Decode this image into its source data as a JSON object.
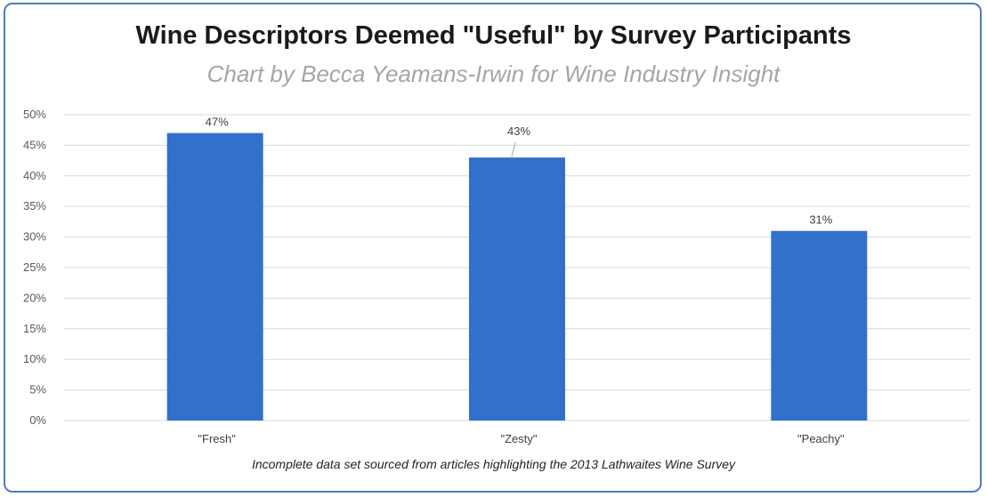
{
  "chart_data": {
    "type": "bar",
    "title": "Wine Descriptors Deemed \"Useful\" by Survey Participants",
    "subtitle": "Chart by Becca Yeamans-Irwin for Wine Industry Insight",
    "footnote": "Incomplete data set sourced from articles highlighting the 2013 Lathwaites Wine Survey",
    "categories": [
      "\"Fresh\"",
      "\"Zesty\"",
      "\"Peachy\""
    ],
    "values": [
      47,
      43,
      31
    ],
    "data_labels": [
      "47%",
      "43%",
      "31%"
    ],
    "ylim": [
      0,
      50
    ],
    "yticks": [
      0,
      5,
      10,
      15,
      20,
      25,
      30,
      35,
      40,
      45,
      50
    ],
    "ytick_labels": [
      "0%",
      "5%",
      "10%",
      "15%",
      "20%",
      "25%",
      "30%",
      "35%",
      "40%",
      "45%",
      "50%"
    ],
    "grid": true,
    "legend": "none",
    "xlabel": "",
    "ylabel": "",
    "colors": {
      "bar": "#3370cc",
      "grid": "#d9d9d9",
      "frame": "#4d7bc3",
      "title": "#1a1a1a",
      "subtitle": "#a5a5a5"
    }
  }
}
